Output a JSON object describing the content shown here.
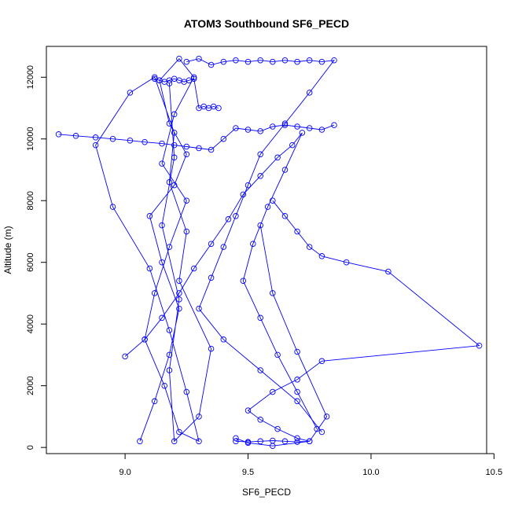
{
  "chart_data": {
    "type": "scatter",
    "title": "ATOM3 Southbound SF6_PECD",
    "xlabel": "SF6_PECD",
    "ylabel": "Altitude (m)",
    "xlim": [
      8.68,
      10.47
    ],
    "ylim": [
      -200,
      13000
    ],
    "x_ticks": [
      9.0,
      9.5,
      10.0,
      10.5
    ],
    "x_tick_labels": [
      "9.0",
      "9.5",
      "10.0",
      "10.5"
    ],
    "y_ticks": [
      0,
      2000,
      4000,
      6000,
      8000,
      10000,
      12000
    ],
    "y_tick_labels": [
      "0",
      "2000",
      "4000",
      "6000",
      "8000",
      "10000",
      "12000"
    ],
    "grid": false,
    "legend": "none",
    "series_color": "#0000ff",
    "series": [
      {
        "style": "line+points",
        "x": [
          9.06,
          9.12,
          9.18,
          9.22,
          9.15,
          9.1,
          9.2,
          9.25,
          9.18,
          9.14,
          9.22,
          9.28,
          9.2,
          9.15,
          9.25,
          9.18,
          9.12,
          9.08,
          9.16,
          9.22,
          9.3,
          9.25,
          9.18,
          9.1,
          8.95,
          8.88,
          9.02,
          9.12,
          9.2,
          9.18,
          9.25,
          9.22,
          9.35,
          9.3,
          9.2,
          9.18,
          9.22,
          9.15,
          9.2,
          9.18
        ],
        "y": [
          200,
          1500,
          3000,
          4500,
          6000,
          7500,
          8500,
          9500,
          10500,
          11900,
          12600,
          12000,
          10800,
          9200,
          8000,
          6500,
          5000,
          3500,
          2000,
          500,
          200,
          1800,
          3800,
          5800,
          7800,
          9800,
          11500,
          12000,
          10200,
          8600,
          7000,
          5400,
          3200,
          1000,
          200,
          2500,
          4800,
          7200,
          9400,
          11800
        ]
      },
      {
        "style": "line+points",
        "x": [
          9.25,
          9.3,
          9.35,
          9.4,
          9.45,
          9.5,
          9.55,
          9.6,
          9.65,
          9.7,
          9.75,
          9.8,
          9.85,
          9.75,
          9.65,
          9.55,
          9.5,
          9.45,
          9.4,
          9.35,
          9.3,
          9.4,
          9.55,
          9.7,
          9.8
        ],
        "y": [
          12500,
          12600,
          12400,
          12500,
          12550,
          12500,
          12550,
          12500,
          12550,
          12500,
          12550,
          12500,
          12550,
          11500,
          10500,
          9500,
          8500,
          7500,
          6500,
          5500,
          4500,
          3500,
          2500,
          1500,
          500
        ]
      },
      {
        "style": "line+points",
        "x": [
          8.73,
          8.8,
          8.88,
          8.95,
          9.02,
          9.08,
          9.15,
          9.2,
          9.25,
          9.3,
          9.35,
          9.4,
          9.45,
          9.5,
          9.55,
          9.6,
          9.65,
          9.7,
          9.75,
          9.8,
          9.85
        ],
        "y": [
          10150,
          10100,
          10050,
          10000,
          9950,
          9900,
          9850,
          9800,
          9750,
          9700,
          9650,
          10000,
          10350,
          10300,
          10250,
          10400,
          10450,
          10400,
          10350,
          10300,
          10450
        ]
      },
      {
        "style": "line+points",
        "x": [
          9.6,
          9.65,
          9.7,
          9.75,
          9.8,
          9.9,
          10.07,
          10.44,
          9.8,
          9.7,
          9.6,
          9.5,
          9.55,
          9.62,
          9.7,
          9.75,
          9.82,
          9.7,
          9.6,
          9.55
        ],
        "y": [
          8000,
          7500,
          7000,
          6500,
          6200,
          6000,
          5700,
          3300,
          2800,
          2200,
          1800,
          1200,
          900,
          600,
          300,
          200,
          1000,
          3100,
          5000,
          7200
        ]
      },
      {
        "style": "line+points",
        "x": [
          9.0,
          9.08,
          9.15,
          9.22,
          9.28,
          9.35,
          9.42,
          9.48,
          9.55,
          9.62,
          9.68,
          9.72,
          9.65,
          9.58,
          9.52,
          9.48,
          9.55,
          9.62,
          9.7,
          9.78
        ],
        "y": [
          2950,
          3500,
          4200,
          5000,
          5800,
          6600,
          7400,
          8200,
          8800,
          9400,
          9800,
          10200,
          9000,
          7800,
          6600,
          5400,
          4200,
          3000,
          1800,
          600
        ]
      },
      {
        "style": "line+points",
        "x": [
          9.12,
          9.14,
          9.16,
          9.18,
          9.2,
          9.22,
          9.24,
          9.26,
          9.28,
          9.3,
          9.32,
          9.34,
          9.36,
          9.38
        ],
        "y": [
          11950,
          11900,
          11850,
          11900,
          11950,
          11900,
          11850,
          11900,
          11950,
          11000,
          11050,
          11000,
          11050,
          11000
        ]
      },
      {
        "style": "line+points",
        "x": [
          9.45,
          9.5,
          9.55,
          9.6,
          9.65,
          9.7,
          9.75,
          9.6,
          9.5,
          9.45
        ],
        "y": [
          200,
          180,
          200,
          220,
          200,
          180,
          200,
          50,
          150,
          300
        ]
      }
    ]
  }
}
